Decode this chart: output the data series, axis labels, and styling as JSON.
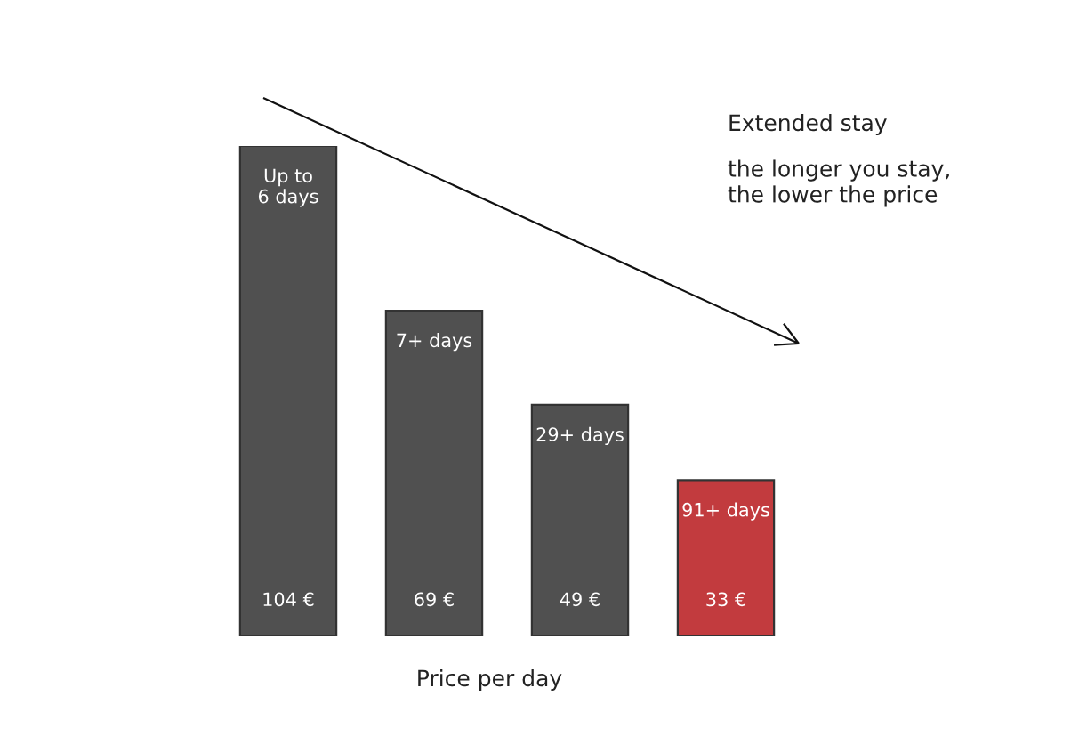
{
  "chart_data": {
    "type": "bar",
    "title": "Extended stay",
    "subtitle": "the longer you stay,\nthe lower the price",
    "xlabel": "Price per day",
    "categories": [
      "Up to\n6 days",
      "7+ days",
      "29+ days",
      "91+ days"
    ],
    "values": [
      104,
      69,
      49,
      33
    ],
    "colors": [
      "#505050",
      "#505050",
      "#505050",
      "#c23b3e"
    ],
    "value_labels": [
      "104 €",
      "69 €",
      "49 €",
      "33 €"
    ]
  }
}
